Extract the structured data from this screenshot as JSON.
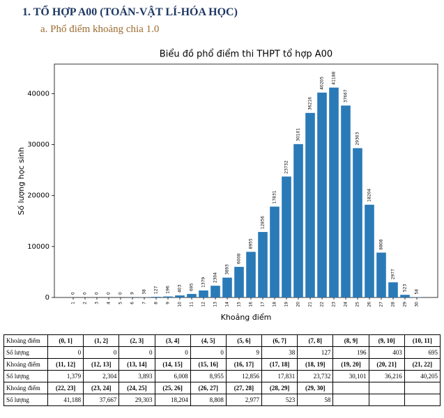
{
  "header": {
    "title": "1. TỔ HỢP A00 (TOÁN-VẬT LÍ-HÓA HỌC)",
    "subtitle": "a. Phổ điểm khoảng chia 1.0"
  },
  "chart_data": {
    "type": "bar",
    "title": "Biểu đồ phổ điểm thi THPT tổ hợp A00",
    "xlabel": "Khoảng điểm",
    "ylabel": "Số lượng học sinh",
    "categories": [
      "1",
      "2",
      "3",
      "4",
      "5",
      "6",
      "7",
      "8",
      "9",
      "10",
      "11",
      "12",
      "13",
      "14",
      "15",
      "16",
      "17",
      "18",
      "19",
      "20",
      "21",
      "22",
      "23",
      "24",
      "25",
      "26",
      "27",
      "28",
      "29",
      "30"
    ],
    "values": [
      0,
      0,
      0,
      0,
      0,
      9,
      38,
      127,
      196,
      403,
      695,
      1379,
      2304,
      3893,
      6008,
      8955,
      12856,
      17831,
      23732,
      30101,
      36216,
      40205,
      41188,
      37667,
      29303,
      18204,
      8808,
      2977,
      523,
      58
    ],
    "color": "#2a7ab8",
    "ylim": [
      0,
      45800
    ],
    "yticks": [
      0,
      10000,
      20000,
      30000,
      40000
    ]
  },
  "table": {
    "rows": [
      [
        "Khoảng điểm",
        "(0, 1]",
        "(1, 2]",
        "(2, 3]",
        "(3, 4]",
        "(4, 5]",
        "(5, 6]",
        "(6, 7]",
        "(7, 8]",
        "(8, 9]",
        "(9, 10]",
        "(10, 11]"
      ],
      [
        "Số lượng",
        "0",
        "0",
        "0",
        "0",
        "0",
        "9",
        "38",
        "127",
        "196",
        "403",
        "695"
      ],
      [
        "Khoảng điểm",
        "(11, 12]",
        "(12, 13]",
        "(13, 14]",
        "(14, 15]",
        "(15, 16]",
        "(16, 17]",
        "(17, 18]",
        "(18, 19]",
        "(19, 20]",
        "(20, 21]",
        "(21, 22]"
      ],
      [
        "Số lượng",
        "1,379",
        "2,304",
        "3,893",
        "6,008",
        "8,955",
        "12,856",
        "17,831",
        "23,732",
        "30,101",
        "36,216",
        "40,205"
      ],
      [
        "Khoảng điểm",
        "(22, 23]",
        "(23, 24]",
        "(24, 25]",
        "(25, 26]",
        "(26, 27]",
        "(27, 28]",
        "(28, 29]",
        "(29, 30]"
      ],
      [
        "Số lượng",
        "41,188",
        "37,667",
        "29,303",
        "18,204",
        "8,808",
        "2,977",
        "523",
        "58"
      ]
    ]
  }
}
